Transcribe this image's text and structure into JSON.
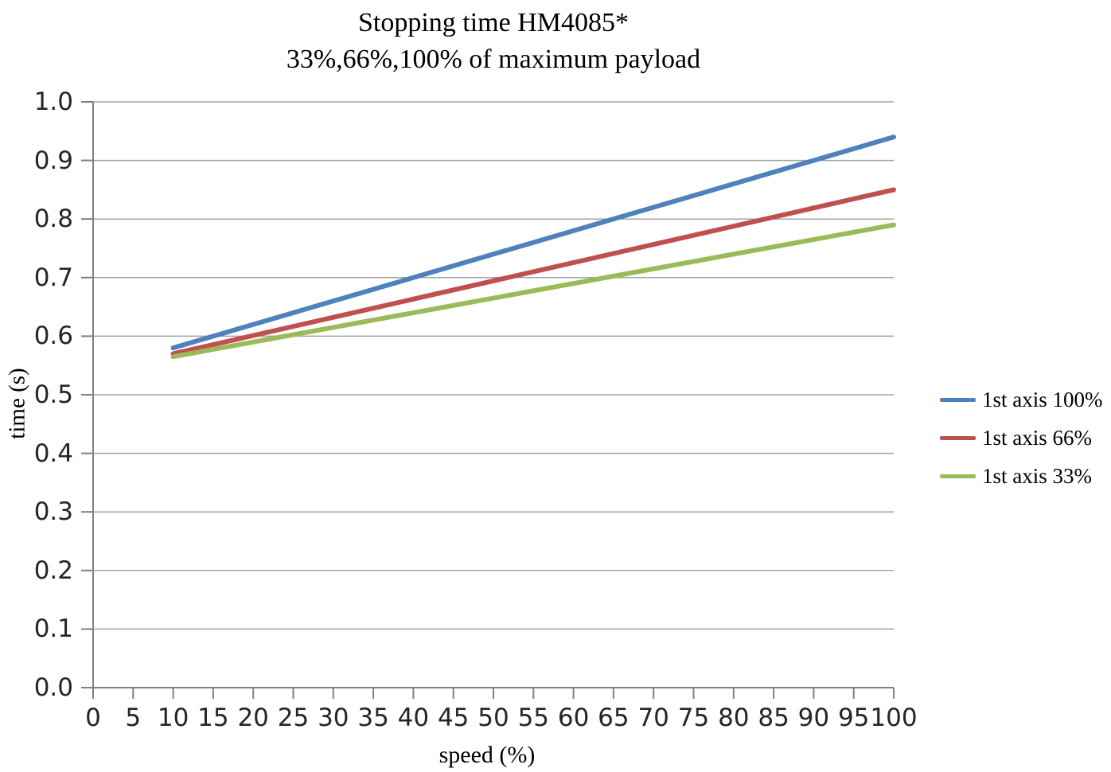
{
  "chart_data": {
    "type": "line",
    "title": "Stopping time HM4085*",
    "subtitle": "33%,66%,100% of maximum payload",
    "xlabel": "speed (%)",
    "ylabel": "time (s)",
    "xlim": [
      0,
      100
    ],
    "ylim": [
      0.0,
      1.0
    ],
    "x_ticks": [
      0,
      5,
      10,
      15,
      20,
      25,
      30,
      35,
      40,
      45,
      50,
      55,
      60,
      65,
      70,
      75,
      80,
      85,
      90,
      95,
      100
    ],
    "y_tick_labels": [
      "0.0",
      "0.1",
      "0.2",
      "0.3",
      "0.4",
      "0.5",
      "0.6",
      "0.7",
      "0.8",
      "0.9",
      "1.0"
    ],
    "grid": "horizontal",
    "legend_position": "right",
    "x": [
      10,
      100
    ],
    "series": [
      {
        "name": "1st axis 100%",
        "color": "#4F81BD",
        "values": [
          0.58,
          0.94
        ]
      },
      {
        "name": "1st axis 66%",
        "color": "#C0504D",
        "values": [
          0.57,
          0.85
        ]
      },
      {
        "name": "1st axis 33%",
        "color": "#9BBB59",
        "values": [
          0.565,
          0.79
        ]
      }
    ],
    "colors": {
      "grid": "#A3A3A3",
      "axis": "#808080",
      "text": "#262626"
    }
  }
}
